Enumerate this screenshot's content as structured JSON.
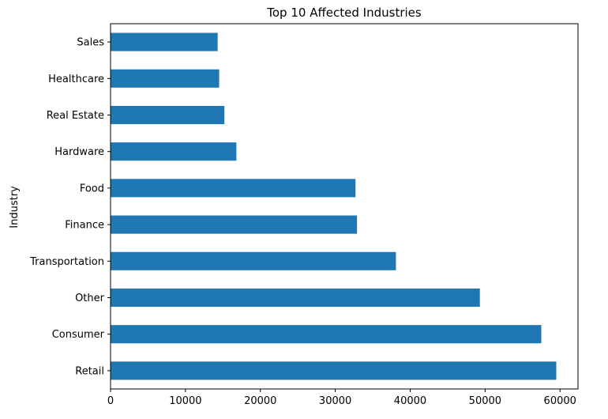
{
  "chart_data": {
    "type": "bar",
    "orientation": "horizontal",
    "title": "Top 10 Affected Industries",
    "xlabel": "",
    "ylabel": "Industry",
    "categories": [
      "Retail",
      "Consumer",
      "Other",
      "Transportation",
      "Finance",
      "Food",
      "Hardware",
      "Real Estate",
      "Healthcare",
      "Sales"
    ],
    "values": [
      59500,
      57500,
      49300,
      38100,
      32900,
      32700,
      16800,
      15200,
      14500,
      14300
    ],
    "xlim": [
      0,
      62400
    ],
    "xticks": [
      0,
      10000,
      20000,
      30000,
      40000,
      50000,
      60000
    ],
    "xtick_labels": [
      "0",
      "10000",
      "20000",
      "30000",
      "40000",
      "50000",
      "60000"
    ],
    "grid": false,
    "bar_color": "#1f77b4"
  }
}
